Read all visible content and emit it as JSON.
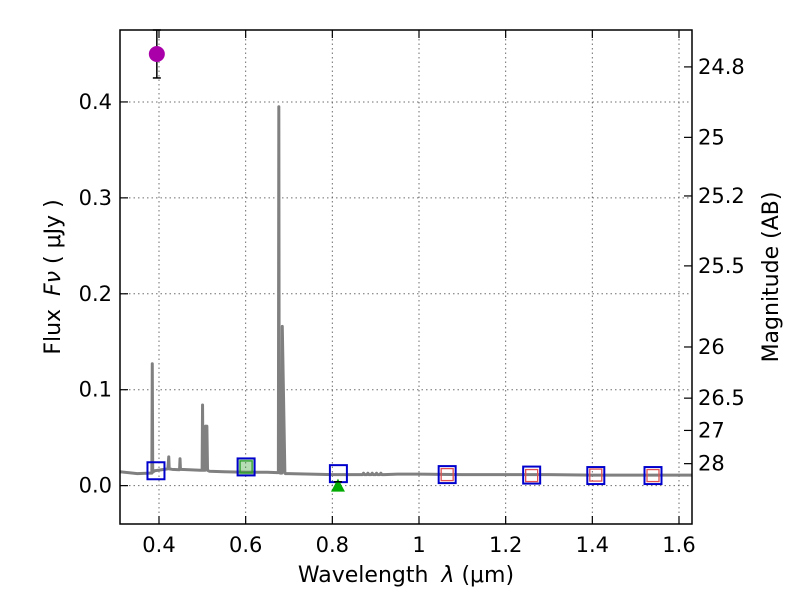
{
  "chart_data": {
    "type": "line",
    "xlabel": "Wavelength",
    "xlabel_symbol": "λ",
    "xlabel_unit": "(μm)",
    "ylabel": "Flux",
    "ylabel_symbol": "Fν",
    "ylabel_unit": "( μJy )",
    "y2label": "Magnitude (AB)",
    "xlim": [
      0.31,
      1.63
    ],
    "ylim": [
      -0.04,
      0.475
    ],
    "x_ticks": [
      0.4,
      0.6,
      0.8,
      1.0,
      1.2,
      1.4,
      1.6
    ],
    "x_tick_labels": [
      "0.4",
      "0.6",
      "0.8",
      "1",
      "1.2",
      "1.4",
      "1.6"
    ],
    "y_ticks": [
      0.0,
      0.1,
      0.2,
      0.3,
      0.4
    ],
    "y_tick_labels": [
      "0.0",
      "0.1",
      "0.2",
      "0.3",
      "0.4"
    ],
    "mag_ticks": [
      24.8,
      25,
      25.2,
      25.5,
      26,
      26.5,
      27,
      28
    ],
    "mag_tick_labels": [
      "24.8",
      "25",
      "25.2",
      "25.5",
      "26",
      "26.5",
      "27",
      "28"
    ],
    "grid": true,
    "colors": {
      "spectrum": "#808080",
      "model_box": "#0000cc",
      "observed_box": "#e05050",
      "green_box": "#2ca02c",
      "detection": "#aa00aa",
      "upper_limit": "#00aa00",
      "errorbar": "#000000"
    },
    "series": [
      {
        "name": "SED model spectrum",
        "x": [
          0.31,
          0.35,
          0.378,
          0.3835,
          0.3845,
          0.3855,
          0.39,
          0.42,
          0.4205,
          0.4225,
          0.4235,
          0.43,
          0.447,
          0.4475,
          0.4485,
          0.4495,
          0.47,
          0.495,
          0.4995,
          0.5005,
          0.5015,
          0.505,
          0.5065,
          0.5075,
          0.5095,
          0.5105,
          0.512,
          0.516,
          0.55,
          0.6,
          0.65,
          0.672,
          0.6755,
          0.6765,
          0.6775,
          0.68,
          0.6835,
          0.6845,
          0.6905,
          0.6915,
          0.6925,
          0.7,
          0.75,
          0.8,
          0.85,
          0.87,
          0.872,
          0.874,
          0.88,
          0.882,
          0.884,
          0.89,
          0.892,
          0.894,
          0.9,
          0.902,
          0.904,
          0.91,
          0.912,
          0.914,
          0.92,
          0.95,
          1.0,
          1.1,
          1.2,
          1.3,
          1.4,
          1.5,
          1.63
        ],
        "y": [
          0.0145,
          0.0125,
          0.013,
          0.013,
          0.127,
          0.014,
          0.0155,
          0.0175,
          0.0175,
          0.03,
          0.0175,
          0.017,
          0.0165,
          0.017,
          0.028,
          0.017,
          0.0165,
          0.016,
          0.016,
          0.084,
          0.016,
          0.016,
          0.016,
          0.062,
          0.061,
          0.062,
          0.016,
          0.015,
          0.0145,
          0.014,
          0.014,
          0.0135,
          0.0135,
          0.395,
          0.0135,
          0.013,
          0.013,
          0.166,
          0.013,
          0.0125,
          0.0125,
          0.0125,
          0.012,
          0.0115,
          0.0115,
          0.0115,
          0.013,
          0.0115,
          0.0115,
          0.013,
          0.0115,
          0.0115,
          0.013,
          0.0115,
          0.0115,
          0.013,
          0.0115,
          0.0115,
          0.013,
          0.0115,
          0.0115,
          0.012,
          0.012,
          0.0115,
          0.0115,
          0.0115,
          0.011,
          0.011,
          0.011
        ]
      },
      {
        "name": "model band fluxes",
        "marker": "open-square",
        "x": [
          0.393,
          0.601,
          0.814,
          1.065,
          1.26,
          1.408,
          1.54
        ],
        "y": [
          0.0155,
          0.0195,
          0.0125,
          0.0115,
          0.011,
          0.0105,
          0.0105
        ]
      },
      {
        "name": "observed band fluxes",
        "marker": "small-open-square",
        "x": [
          0.601,
          1.065,
          1.26,
          1.408,
          1.54
        ],
        "y": [
          0.0195,
          0.0115,
          0.0105,
          0.011,
          0.0105
        ]
      },
      {
        "name": "detection",
        "marker": "filled-circle",
        "x": [
          0.395
        ],
        "y": [
          0.45
        ],
        "err_low": [
          0.425
        ],
        "err_high": [
          0.475
        ]
      },
      {
        "name": "upper limit",
        "marker": "filled-triangle",
        "x": [
          0.813
        ],
        "y": [
          0.0
        ],
        "err_low": [
          -0.001
        ],
        "err_high": [
          0.004
        ]
      }
    ]
  }
}
